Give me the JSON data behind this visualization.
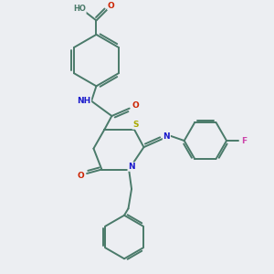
{
  "bg_color": "#eceef2",
  "bond_color": "#4a7a6a",
  "atom_colors": {
    "N": "#1a1acc",
    "O": "#cc2200",
    "S": "#aaaa00",
    "F": "#cc44aa",
    "HO": "#4a7a6a",
    "H": "#4a7a6a"
  },
  "figsize": [
    3.0,
    3.0
  ],
  "dpi": 100,
  "xlim": [
    0,
    10
  ],
  "ylim": [
    0,
    10
  ]
}
